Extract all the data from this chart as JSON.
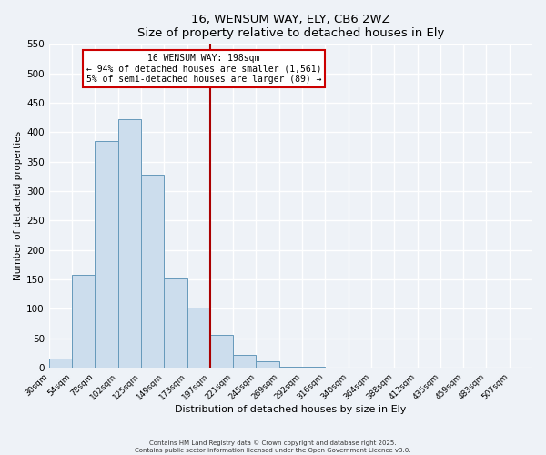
{
  "title": "16, WENSUM WAY, ELY, CB6 2WZ",
  "subtitle": "Size of property relative to detached houses in Ely",
  "xlabel": "Distribution of detached houses by size in Ely",
  "ylabel": "Number of detached properties",
  "bin_labels": [
    "30sqm",
    "54sqm",
    "78sqm",
    "102sqm",
    "125sqm",
    "149sqm",
    "173sqm",
    "197sqm",
    "221sqm",
    "245sqm",
    "269sqm",
    "292sqm",
    "316sqm",
    "340sqm",
    "364sqm",
    "388sqm",
    "412sqm",
    "435sqm",
    "459sqm",
    "483sqm",
    "507sqm"
  ],
  "bin_values": [
    15,
    157,
    385,
    422,
    328,
    152,
    102,
    55,
    21,
    11,
    2,
    1,
    0,
    0,
    0,
    0,
    0,
    0,
    0,
    0,
    0
  ],
  "bar_color": "#ccdded",
  "bar_edge_color": "#6699bb",
  "vline_index": 7,
  "ylim": [
    0,
    550
  ],
  "yticks": [
    0,
    50,
    100,
    150,
    200,
    250,
    300,
    350,
    400,
    450,
    500,
    550
  ],
  "annotation_title": "16 WENSUM WAY: 198sqm",
  "annotation_line1": "← 94% of detached houses are smaller (1,561)",
  "annotation_line2": "5% of semi-detached houses are larger (89) →",
  "annotation_box_color": "#ffffff",
  "annotation_box_edge": "#cc0000",
  "vline_color": "#aa0000",
  "footer1": "Contains HM Land Registry data © Crown copyright and database right 2025.",
  "footer2": "Contains public sector information licensed under the Open Government Licence v3.0.",
  "background_color": "#eef2f7",
  "grid_color": "#ffffff"
}
